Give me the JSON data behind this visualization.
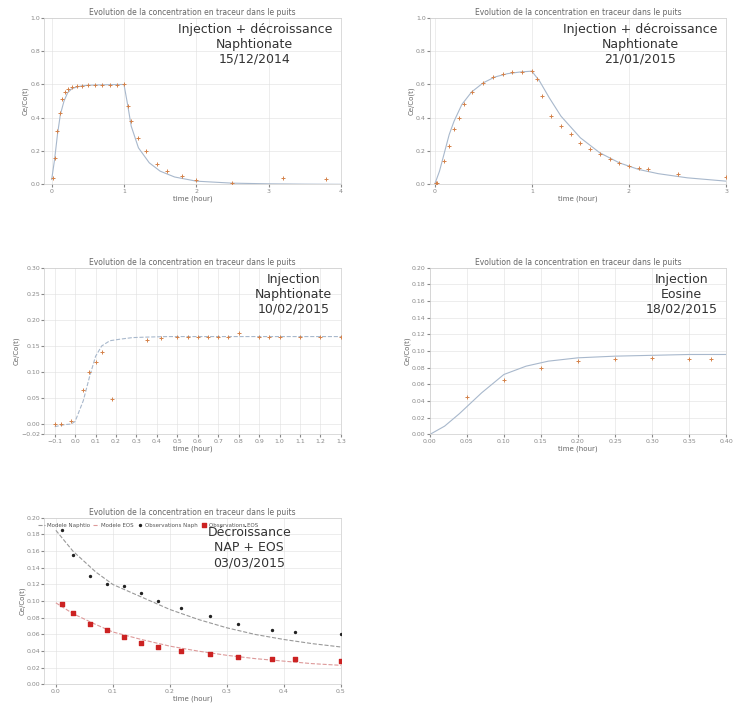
{
  "ylabel": "Ce/Co(t)",
  "xlabel": "time (hour)",
  "line_color": "#a8b8cc",
  "point_color": "#d4824a",
  "title_fontsize": 5.5,
  "axis_fontsize": 5,
  "tick_fontsize": 4.5,
  "annotation_fontsize": 9,
  "plot1": {
    "title": "Evolution de la concentration en traceur dans le puits",
    "annotation": "Injection + décroissance\nNaphtionate\n15/12/2014",
    "xlim": [
      -0.1,
      4.0
    ],
    "ylim": [
      0.0,
      1.0
    ],
    "xticks": [
      0,
      1,
      2,
      3,
      4
    ],
    "yticks": [
      0,
      0.2,
      0.4,
      0.6,
      0.8,
      1.0
    ],
    "curve_x": [
      0.0,
      0.04,
      0.08,
      0.12,
      0.17,
      0.22,
      0.28,
      0.35,
      0.42,
      0.5,
      0.6,
      0.7,
      0.8,
      0.9,
      1.0,
      1.05,
      1.1,
      1.2,
      1.35,
      1.5,
      1.7,
      2.0,
      2.5,
      3.0,
      3.5,
      4.0
    ],
    "curve_y": [
      0.03,
      0.15,
      0.3,
      0.42,
      0.5,
      0.55,
      0.575,
      0.585,
      0.592,
      0.595,
      0.597,
      0.598,
      0.599,
      0.6,
      0.6,
      0.48,
      0.35,
      0.22,
      0.13,
      0.08,
      0.045,
      0.02,
      0.008,
      0.004,
      0.002,
      0.001
    ],
    "pts_x": [
      0.02,
      0.05,
      0.08,
      0.11,
      0.14,
      0.18,
      0.22,
      0.28,
      0.35,
      0.42,
      0.5,
      0.6,
      0.7,
      0.8,
      0.9,
      1.0,
      1.05,
      1.1,
      1.2,
      1.3,
      1.45,
      1.6,
      1.8,
      2.0,
      2.5,
      3.2,
      3.8
    ],
    "pts_y": [
      0.04,
      0.16,
      0.32,
      0.43,
      0.51,
      0.555,
      0.572,
      0.582,
      0.589,
      0.592,
      0.595,
      0.597,
      0.596,
      0.597,
      0.599,
      0.6,
      0.47,
      0.38,
      0.28,
      0.2,
      0.12,
      0.08,
      0.05,
      0.025,
      0.01,
      0.04,
      0.03
    ]
  },
  "plot2": {
    "title": "Evolution de la concentration en traceur dans le puits",
    "annotation": "Injection + décroissance\nNaphtionate\n21/01/2015",
    "xlim": [
      -0.05,
      3.0
    ],
    "ylim": [
      0.0,
      1.0
    ],
    "xticks": [
      0,
      1,
      2,
      3
    ],
    "yticks": [
      0,
      0.2,
      0.4,
      0.6,
      0.8,
      1.0
    ],
    "curve_x": [
      0.0,
      0.05,
      0.1,
      0.15,
      0.2,
      0.28,
      0.38,
      0.5,
      0.62,
      0.75,
      0.88,
      1.0,
      1.08,
      1.18,
      1.3,
      1.5,
      1.7,
      1.9,
      2.1,
      2.3,
      2.6,
      3.0
    ],
    "curve_y": [
      0.0,
      0.08,
      0.19,
      0.3,
      0.38,
      0.48,
      0.555,
      0.61,
      0.645,
      0.665,
      0.675,
      0.68,
      0.62,
      0.52,
      0.41,
      0.28,
      0.19,
      0.13,
      0.09,
      0.065,
      0.04,
      0.02
    ],
    "pts_x": [
      0.01,
      0.02,
      0.1,
      0.15,
      0.2,
      0.25,
      0.3,
      0.38,
      0.5,
      0.6,
      0.7,
      0.8,
      0.9,
      1.0,
      1.05,
      1.1,
      1.2,
      1.3,
      1.4,
      1.5,
      1.6,
      1.7,
      1.8,
      1.9,
      2.0,
      2.1,
      2.2,
      2.5,
      3.0
    ],
    "pts_y": [
      0.01,
      0.01,
      0.14,
      0.23,
      0.33,
      0.4,
      0.48,
      0.555,
      0.61,
      0.644,
      0.663,
      0.672,
      0.676,
      0.68,
      0.63,
      0.53,
      0.41,
      0.35,
      0.3,
      0.25,
      0.21,
      0.18,
      0.15,
      0.13,
      0.11,
      0.1,
      0.09,
      0.06,
      0.045
    ]
  },
  "plot3": {
    "title": "Evolution de la concentration en traceur dans le puits",
    "annotation": "Injection\nNaphtionate\n10/02/2015",
    "xlim": [
      -0.15,
      1.3
    ],
    "ylim": [
      -0.02,
      0.3
    ],
    "xticks": [
      -0.1,
      0.0,
      0.1,
      0.2,
      0.3,
      0.4,
      0.5,
      0.6,
      0.7,
      0.8,
      0.9,
      1.0,
      1.1,
      1.2,
      1.3
    ],
    "yticks": [
      -0.02,
      0.0,
      0.05,
      0.1,
      0.15,
      0.2,
      0.25,
      0.3
    ],
    "curve_x": [
      -0.1,
      -0.05,
      -0.02,
      0.0,
      0.04,
      0.07,
      0.1,
      0.13,
      0.17,
      0.22,
      0.28,
      0.35,
      0.45,
      0.6,
      0.8,
      1.0,
      1.2,
      1.3
    ],
    "curve_y": [
      -0.005,
      -0.001,
      0.0,
      0.005,
      0.045,
      0.09,
      0.13,
      0.15,
      0.16,
      0.163,
      0.166,
      0.167,
      0.168,
      0.168,
      0.168,
      0.168,
      0.168,
      0.168
    ],
    "pts_x": [
      -0.1,
      -0.07,
      -0.02,
      0.04,
      0.07,
      0.1,
      0.13,
      0.18,
      0.35,
      0.42,
      0.5,
      0.55,
      0.6,
      0.65,
      0.7,
      0.75,
      0.8,
      0.9,
      0.95,
      1.0,
      1.1,
      1.2,
      1.3
    ],
    "pts_y": [
      0.0,
      0.0,
      0.006,
      0.065,
      0.1,
      0.12,
      0.138,
      0.048,
      0.162,
      0.165,
      0.167,
      0.167,
      0.167,
      0.168,
      0.168,
      0.168,
      0.174,
      0.168,
      0.168,
      0.168,
      0.168,
      0.168,
      0.168
    ]
  },
  "plot4": {
    "title": "Evolution de la concentration en traceur dans le puits",
    "annotation": "Injection\nEosine\n18/02/2015",
    "xlim": [
      0.0,
      0.4
    ],
    "ylim": [
      0.0,
      0.2
    ],
    "xticks": [
      0.0,
      0.05,
      0.1,
      0.15,
      0.2,
      0.25,
      0.3,
      0.35,
      0.4
    ],
    "yticks": [
      0.0,
      0.02,
      0.04,
      0.06,
      0.08,
      0.1,
      0.12,
      0.14,
      0.16,
      0.18,
      0.2
    ],
    "curve_x": [
      0.0,
      0.02,
      0.04,
      0.07,
      0.1,
      0.13,
      0.16,
      0.2,
      0.25,
      0.3,
      0.35,
      0.4
    ],
    "curve_y": [
      0.0,
      0.01,
      0.025,
      0.05,
      0.072,
      0.082,
      0.088,
      0.092,
      0.094,
      0.095,
      0.096,
      0.096
    ],
    "pts_x": [
      0.05,
      0.1,
      0.15,
      0.2,
      0.25,
      0.3,
      0.35,
      0.38
    ],
    "pts_y": [
      0.045,
      0.065,
      0.08,
      0.088,
      0.09,
      0.092,
      0.09,
      0.09
    ]
  },
  "plot5": {
    "title": "Evolution de la concentration en traceur dans le puits",
    "annotation": "Décroissance\nNAP + EOS\n03/03/2015",
    "xlim": [
      -0.02,
      0.5
    ],
    "ylim": [
      0.0,
      0.2
    ],
    "xticks": [
      0.0,
      0.1,
      0.2,
      0.3,
      0.4,
      0.5
    ],
    "yticks": [
      0.0,
      0.02,
      0.04,
      0.06,
      0.08,
      0.1,
      0.12,
      0.14,
      0.16,
      0.18,
      0.2
    ],
    "legend_labels": [
      "Observations Naph",
      "Modele Naphtio",
      "Observations EOS",
      "Modele EOS"
    ],
    "legend_colors_pts": [
      "#222222",
      "#cc2222"
    ],
    "legend_colors_line": [
      "#999999",
      "#dd9999"
    ],
    "curve_nap_x": [
      0.0,
      0.03,
      0.07,
      0.1,
      0.15,
      0.2,
      0.25,
      0.3,
      0.35,
      0.4,
      0.45,
      0.5
    ],
    "curve_nap_y": [
      0.185,
      0.16,
      0.135,
      0.12,
      0.105,
      0.09,
      0.078,
      0.068,
      0.06,
      0.054,
      0.049,
      0.045
    ],
    "curve_eos_x": [
      0.0,
      0.03,
      0.07,
      0.1,
      0.15,
      0.2,
      0.25,
      0.3,
      0.35,
      0.4,
      0.45,
      0.5
    ],
    "curve_eos_y": [
      0.098,
      0.085,
      0.072,
      0.063,
      0.054,
      0.046,
      0.04,
      0.035,
      0.031,
      0.028,
      0.025,
      0.023
    ],
    "pts_nap_x": [
      0.01,
      0.03,
      0.06,
      0.09,
      0.12,
      0.15,
      0.18,
      0.22,
      0.27,
      0.32,
      0.38,
      0.42,
      0.5
    ],
    "pts_nap_y": [
      0.185,
      0.155,
      0.13,
      0.12,
      0.118,
      0.11,
      0.1,
      0.092,
      0.082,
      0.072,
      0.065,
      0.063,
      0.06
    ],
    "pts_eos_x": [
      0.01,
      0.03,
      0.06,
      0.09,
      0.12,
      0.15,
      0.18,
      0.22,
      0.27,
      0.32,
      0.38,
      0.42,
      0.5
    ],
    "pts_eos_y": [
      0.096,
      0.086,
      0.073,
      0.065,
      0.057,
      0.05,
      0.045,
      0.04,
      0.036,
      0.033,
      0.03,
      0.03,
      0.028
    ]
  }
}
